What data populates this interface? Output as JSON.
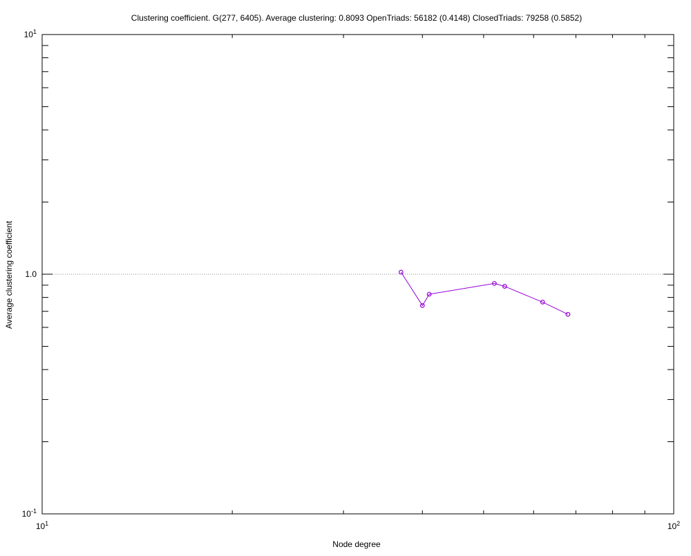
{
  "chart_data": {
    "type": "line",
    "title": "Clustering coefficient. G(277, 6405). Average clustering: 0.8093  OpenTriads: 56182 (0.4148)  ClosedTriads: 79258 (0.5852)",
    "xlabel": "Node degree",
    "ylabel": "Average clustering coefficient",
    "x_scale": "log",
    "y_scale": "log",
    "xlim": [
      10,
      100
    ],
    "ylim": [
      0.1,
      10
    ],
    "x_tick_labels": [
      {
        "base": "10",
        "exp": "1",
        "value": 10
      },
      {
        "base": "10",
        "exp": "2",
        "value": 100
      }
    ],
    "y_tick_labels": [
      {
        "base": "10",
        "exp": "-1",
        "value": 0.1
      },
      {
        "base": "10",
        "exp": "1",
        "value": 10
      }
    ],
    "y_tick_plain": [
      {
        "text": "1.0",
        "value": 1.0
      }
    ],
    "reference_line": {
      "y": 1.0,
      "style": "dotted"
    },
    "series": [
      {
        "color": "#9400d3",
        "marker": "circle",
        "points": [
          {
            "x": 37,
            "y": 1.02
          },
          {
            "x": 40,
            "y": 0.74
          },
          {
            "x": 41,
            "y": 0.825
          },
          {
            "x": 52,
            "y": 0.915
          },
          {
            "x": 54,
            "y": 0.89
          },
          {
            "x": 62,
            "y": 0.765
          },
          {
            "x": 68,
            "y": 0.68
          }
        ]
      }
    ]
  }
}
